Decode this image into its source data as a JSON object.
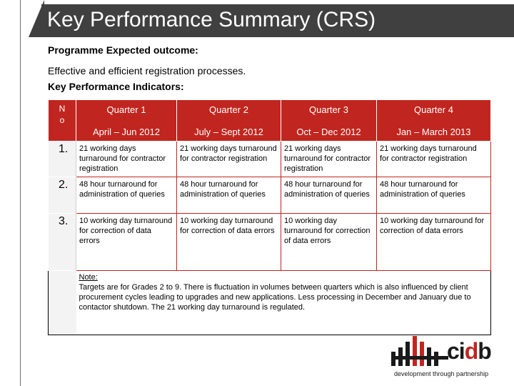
{
  "header": {
    "title": "Key Performance Summary (CRS)"
  },
  "intro": {
    "outcome_label": "Programme Expected outcome:",
    "outcome_text": "Effective and efficient registration processes.",
    "kpi_label": "Key Performance Indicators:"
  },
  "table": {
    "no_header_line1": "N",
    "no_header_line2": "o",
    "quarters": [
      {
        "name": "Quarter 1",
        "period": "April – Jun 2012"
      },
      {
        "name": "Quarter 2",
        "period": "July – Sept 2012"
      },
      {
        "name": "Quarter 3",
        "period": "Oct – Dec 2012"
      },
      {
        "name": "Quarter 4",
        "period": "Jan  – March 2013"
      }
    ],
    "rows": [
      {
        "no": "1.",
        "q1": "21 working days turnaround for contractor registration",
        "q2": "21 working days turnaround for contractor registration",
        "q3": "21 working days turnaround for contractor registration",
        "q4": "21 working days turnaround for contractor registration"
      },
      {
        "no": "2.",
        "q1": "48 hour turnaround for administration of queries",
        "q2": "48 hour turnaround for administration of queries",
        "q3": "48 hour turnaround for administration of queries",
        "q4": "48 hour turnaround for administration of queries"
      },
      {
        "no": "3.",
        "q1": "10 working day turnaround for correction of data errors",
        "q2": "10 working day turnaround for correction of data errors",
        "q3": "10 working day turnaround for correction of data errors",
        "q4": "10 working day turnaround for correction of data errors"
      }
    ],
    "note": {
      "label": "Note:",
      "text": "Targets are for Grades 2 to 9. There is fluctuation in volumes between quarters which is also influenced by client procurement cycles leading to upgrades and new applications. Less processing in December and January due to contactor shutdown. The 21 working day turnaround is regulated."
    }
  },
  "logo": {
    "word_part1": "ci",
    "word_part2": "d",
    "word_part3": "b",
    "tagline": "development through partnership",
    "colors": {
      "brand_red": "#c0261f",
      "dark": "#1a1a1a"
    }
  },
  "colors": {
    "title_bar": "#404040",
    "header_red": "#c0261f",
    "row_number_bg": "#f3f3f3"
  }
}
